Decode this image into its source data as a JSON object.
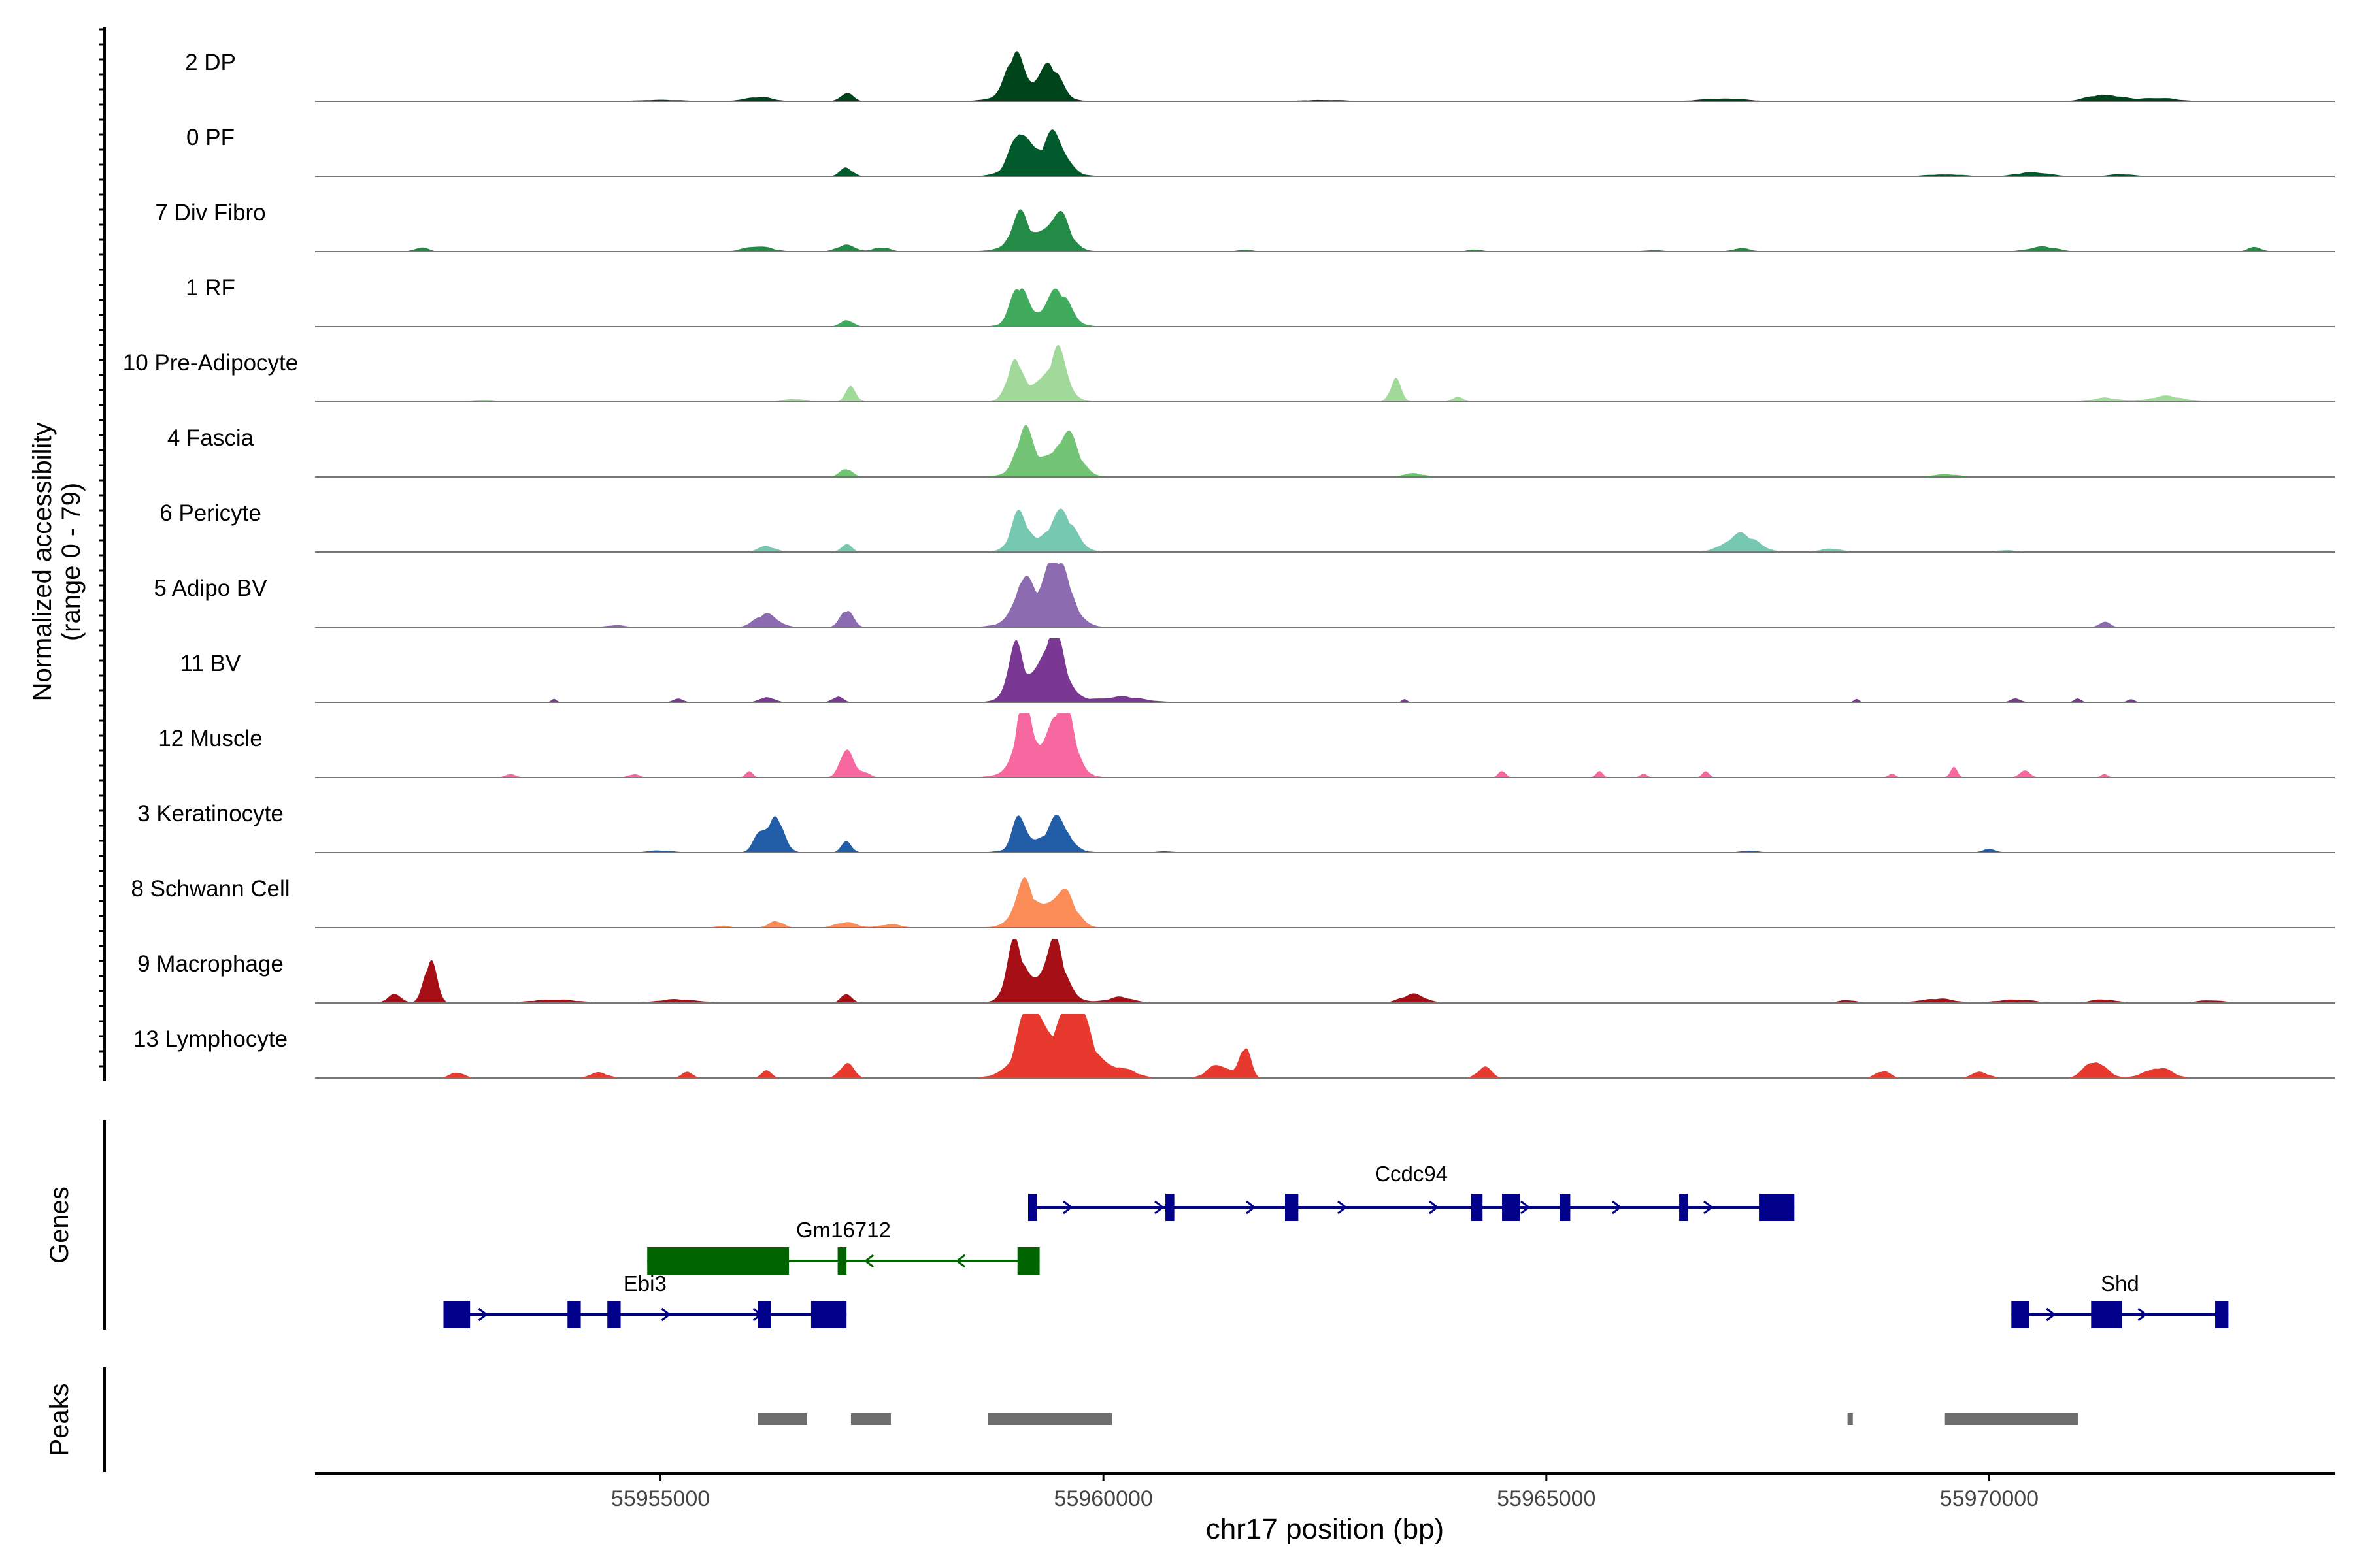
{
  "chart_data": {
    "type": "area",
    "xlabel": "chr17 position (bp)",
    "ylabel": "Normalized accessibility",
    "ylabel_range": "(range 0 - 79)",
    "ylim": [
      0,
      79
    ],
    "xlim": [
      55951100,
      55973900
    ],
    "x_ticks": [
      55955000,
      55960000,
      55965000,
      55970000
    ],
    "x_tick_labels": [
      "55955000",
      "55960000",
      "55965000",
      "55970000"
    ],
    "tracks": [
      {
        "name": "2 DP",
        "color": "#00441b",
        "peaks": [
          [
            55956100,
            6,
            160
          ],
          [
            55957100,
            12,
            70
          ],
          [
            55959000,
            52,
            90
          ],
          [
            55959400,
            40,
            110
          ],
          [
            55959150,
            20,
            260
          ],
          [
            55967000,
            4,
            250
          ],
          [
            55971300,
            10,
            180
          ],
          [
            55971900,
            5,
            200
          ],
          [
            55955000,
            2,
            300
          ],
          [
            55962500,
            2,
            250
          ]
        ]
      },
      {
        "name": "0 PF",
        "color": "#005a2b",
        "peaks": [
          [
            55957100,
            12,
            70
          ],
          [
            55959050,
            55,
            100
          ],
          [
            55959450,
            48,
            120
          ],
          [
            55959250,
            18,
            260
          ],
          [
            55969500,
            3,
            200
          ],
          [
            55970500,
            6,
            180
          ],
          [
            55971500,
            3,
            150
          ]
        ]
      },
      {
        "name": "7 Div Fibro",
        "color": "#238b45",
        "peaks": [
          [
            55952300,
            6,
            80
          ],
          [
            55956100,
            8,
            150
          ],
          [
            55957100,
            10,
            100
          ],
          [
            55957500,
            6,
            90
          ],
          [
            55959050,
            38,
            90
          ],
          [
            55959500,
            45,
            110
          ],
          [
            55959250,
            20,
            260
          ],
          [
            55961600,
            3,
            80
          ],
          [
            55964200,
            3,
            80
          ],
          [
            55967200,
            5,
            100
          ],
          [
            55970600,
            7,
            160
          ],
          [
            55973000,
            6,
            80
          ],
          [
            55966200,
            2,
            120
          ]
        ]
      },
      {
        "name": "1 RF",
        "color": "#41ab5d",
        "peaks": [
          [
            55957100,
            10,
            70
          ],
          [
            55959050,
            50,
            90
          ],
          [
            55959500,
            40,
            120
          ],
          [
            55959300,
            15,
            250
          ]
        ]
      },
      {
        "name": "10 Pre-Adipocyte",
        "color": "#a1d99b",
        "peaks": [
          [
            55957150,
            20,
            60
          ],
          [
            55959000,
            55,
            80
          ],
          [
            55959500,
            62,
            90
          ],
          [
            55959300,
            25,
            220
          ],
          [
            55963300,
            33,
            60
          ],
          [
            55964000,
            8,
            60
          ],
          [
            55956500,
            4,
            120
          ],
          [
            55971300,
            6,
            140
          ],
          [
            55972000,
            8,
            200
          ],
          [
            55953000,
            3,
            100
          ]
        ]
      },
      {
        "name": "4 Fascia",
        "color": "#74c476",
        "peaks": [
          [
            55957100,
            12,
            70
          ],
          [
            55959100,
            50,
            90
          ],
          [
            55959600,
            45,
            120
          ],
          [
            55959350,
            25,
            260
          ],
          [
            55963500,
            5,
            120
          ],
          [
            55969500,
            4,
            150
          ]
        ]
      },
      {
        "name": "6 Pericyte",
        "color": "#76c8b1",
        "peaks": [
          [
            55956200,
            8,
            100
          ],
          [
            55957100,
            12,
            60
          ],
          [
            55959050,
            45,
            90
          ],
          [
            55959550,
            45,
            140
          ],
          [
            55959300,
            15,
            250
          ],
          [
            55967200,
            25,
            180
          ],
          [
            55968200,
            5,
            120
          ],
          [
            55970200,
            3,
            100
          ]
        ]
      },
      {
        "name": "5 Adipo BV",
        "color": "#8c6bb1",
        "peaks": [
          [
            55956200,
            20,
            120
          ],
          [
            55957100,
            25,
            70
          ],
          [
            55959100,
            55,
            90
          ],
          [
            55959500,
            80,
            130
          ],
          [
            55959300,
            30,
            260
          ],
          [
            55971300,
            8,
            60
          ],
          [
            55954500,
            3,
            100
          ]
        ]
      },
      {
        "name": "11 BV",
        "color": "#7a3794",
        "peaks": [
          [
            55959000,
            70,
            80
          ],
          [
            55959450,
            85,
            100
          ],
          [
            55959300,
            35,
            240
          ],
          [
            55960200,
            8,
            250
          ],
          [
            55956200,
            8,
            80
          ],
          [
            55957000,
            8,
            60
          ],
          [
            55955200,
            5,
            60
          ],
          [
            55953800,
            5,
            30
          ],
          [
            55968500,
            5,
            30
          ],
          [
            55970300,
            5,
            60
          ],
          [
            55971000,
            6,
            40
          ],
          [
            55971600,
            5,
            40
          ],
          [
            55963400,
            5,
            30
          ]
        ]
      },
      {
        "name": "12 Muscle",
        "color": "#f768a1",
        "peaks": [
          [
            55957100,
            45,
            70
          ],
          [
            55959100,
            85,
            80
          ],
          [
            55959550,
            85,
            120
          ],
          [
            55959300,
            40,
            250
          ],
          [
            55956000,
            10,
            40
          ],
          [
            55957300,
            8,
            60
          ],
          [
            55964500,
            10,
            40
          ],
          [
            55965600,
            8,
            40
          ],
          [
            55966800,
            8,
            40
          ],
          [
            55969600,
            15,
            40
          ],
          [
            55970400,
            10,
            60
          ],
          [
            55953300,
            5,
            60
          ],
          [
            55954700,
            5,
            60
          ],
          [
            55966100,
            5,
            40
          ],
          [
            55968900,
            5,
            40
          ],
          [
            55971300,
            5,
            40
          ]
        ]
      },
      {
        "name": "3 Keratinocyte",
        "color": "#225ea8",
        "peaks": [
          [
            55956300,
            55,
            90
          ],
          [
            55956100,
            20,
            70
          ],
          [
            55957100,
            15,
            60
          ],
          [
            55959050,
            48,
            70
          ],
          [
            55959500,
            38,
            110
          ],
          [
            55959300,
            15,
            250
          ],
          [
            55970000,
            5,
            80
          ],
          [
            55955000,
            3,
            150
          ],
          [
            55967300,
            3,
            100
          ],
          [
            55960700,
            2,
            100
          ]
        ]
      },
      {
        "name": "8 Schwann Cell",
        "color": "#fc8d59",
        "peaks": [
          [
            55959100,
            50,
            100
          ],
          [
            55959550,
            45,
            120
          ],
          [
            55959300,
            20,
            250
          ],
          [
            55956300,
            10,
            80
          ],
          [
            55957100,
            8,
            120
          ],
          [
            55957600,
            5,
            120
          ],
          [
            55955700,
            3,
            80
          ]
        ]
      },
      {
        "name": "9 Macrophage",
        "color": "#a50f15",
        "peaks": [
          [
            55952400,
            60,
            70
          ],
          [
            55952000,
            12,
            80
          ],
          [
            55957100,
            14,
            60
          ],
          [
            55959000,
            70,
            90
          ],
          [
            55959450,
            65,
            100
          ],
          [
            55959300,
            30,
            250
          ],
          [
            55960200,
            8,
            150
          ],
          [
            55963500,
            12,
            140
          ],
          [
            55953800,
            5,
            250
          ],
          [
            55955200,
            5,
            250
          ],
          [
            55969400,
            6,
            200
          ],
          [
            55970300,
            5,
            200
          ],
          [
            55971300,
            5,
            150
          ],
          [
            55972500,
            4,
            150
          ],
          [
            55968400,
            4,
            100
          ]
        ]
      },
      {
        "name": "13 Lymphocyte",
        "color": "#e8392f",
        "peaks": [
          [
            55959150,
            85,
            100
          ],
          [
            55959700,
            80,
            150
          ],
          [
            55959400,
            50,
            300
          ],
          [
            55960200,
            15,
            150
          ],
          [
            55961600,
            45,
            60
          ],
          [
            55961300,
            20,
            120
          ],
          [
            55971200,
            25,
            120
          ],
          [
            55971900,
            15,
            150
          ],
          [
            55964300,
            15,
            80
          ],
          [
            55968800,
            10,
            80
          ],
          [
            55955300,
            10,
            60
          ],
          [
            55957100,
            20,
            80
          ],
          [
            55956200,
            10,
            60
          ],
          [
            55952700,
            8,
            80
          ],
          [
            55954300,
            8,
            100
          ],
          [
            55969900,
            8,
            100
          ]
        ]
      }
    ],
    "genes": [
      {
        "name": "Ccdc94",
        "row": 0,
        "strand": "+",
        "color": "#00008b",
        "start": 55959150,
        "end": 55967800,
        "exons": [
          [
            55959150,
            55959250
          ],
          [
            55960700,
            55960800
          ],
          [
            55962050,
            55962200
          ],
          [
            55964150,
            55964280
          ],
          [
            55964500,
            55964700
          ],
          [
            55965150,
            55965270
          ],
          [
            55966500,
            55966600
          ],
          [
            55967400,
            55967800
          ]
        ]
      },
      {
        "name": "Gm16712",
        "row": 1,
        "strand": "-",
        "color": "#006400",
        "start": 55954850,
        "end": 55959280,
        "exons": [
          [
            55954850,
            55956450
          ],
          [
            55957000,
            55957100
          ],
          [
            55959030,
            55959280
          ]
        ]
      },
      {
        "name": "Ebi3",
        "row": 2,
        "strand": "+",
        "color": "#00008b",
        "start": 55952550,
        "end": 55957100,
        "exons": [
          [
            55952550,
            55952850
          ],
          [
            55953950,
            55954100
          ],
          [
            55954400,
            55954550
          ],
          [
            55956100,
            55956250
          ],
          [
            55956700,
            55957100
          ]
        ]
      },
      {
        "name": "Shd",
        "row": 2,
        "strand": "+",
        "color": "#00008b",
        "start": 55970250,
        "end": 55972700,
        "exons": [
          [
            55970250,
            55970450
          ],
          [
            55971150,
            55971500
          ],
          [
            55972550,
            55972700
          ]
        ]
      }
    ],
    "peak_regions": [
      [
        55956100,
        55956650
      ],
      [
        55957150,
        55957600
      ],
      [
        55958700,
        55960100
      ],
      [
        55968400,
        55968460
      ],
      [
        55969500,
        55971000
      ]
    ]
  }
}
